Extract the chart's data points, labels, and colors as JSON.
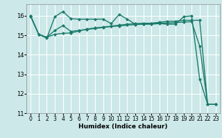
{
  "bg_color": "#cce8e8",
  "grid_color": "#ffffff",
  "line_color": "#1a7a6a",
  "xlabel": "Humidex (Indice chaleur)",
  "xlim": [
    -0.5,
    23.5
  ],
  "ylim": [
    11,
    16.6
  ],
  "yticks": [
    11,
    12,
    13,
    14,
    15,
    16
  ],
  "xticks": [
    0,
    1,
    2,
    3,
    4,
    5,
    6,
    7,
    8,
    9,
    10,
    11,
    12,
    13,
    14,
    15,
    16,
    17,
    18,
    19,
    20,
    21,
    22,
    23
  ],
  "series": [
    {
      "x": [
        0,
        1,
        2,
        3,
        4,
        5,
        6,
        7,
        8,
        9,
        10,
        11,
        12,
        13,
        14,
        15,
        16,
        17,
        18,
        19,
        20,
        21,
        22,
        23
      ],
      "y": [
        16.0,
        15.05,
        14.85,
        15.95,
        16.22,
        15.85,
        15.83,
        15.83,
        15.83,
        15.83,
        15.6,
        16.07,
        15.83,
        15.57,
        15.57,
        15.57,
        15.6,
        15.57,
        15.57,
        15.95,
        16.0,
        12.75,
        11.45,
        11.45
      ],
      "marker": "D",
      "markersize": 2.0,
      "linewidth": 1.0
    },
    {
      "x": [
        0,
        1,
        2,
        3,
        4,
        5,
        6,
        7,
        8,
        9,
        10,
        11,
        12,
        13,
        14,
        15,
        16,
        17,
        18,
        19,
        20,
        21,
        22,
        23
      ],
      "y": [
        15.95,
        15.05,
        14.9,
        15.25,
        15.5,
        15.2,
        15.25,
        15.3,
        15.35,
        15.4,
        15.45,
        15.48,
        15.52,
        15.55,
        15.57,
        15.6,
        15.63,
        15.63,
        15.65,
        15.68,
        15.7,
        14.45,
        11.45,
        11.45
      ],
      "marker": "D",
      "markersize": 2.0,
      "linewidth": 1.0
    },
    {
      "x": [
        0,
        1,
        2,
        3,
        4,
        5,
        6,
        7,
        8,
        9,
        10,
        11,
        12,
        13,
        14,
        15,
        16,
        17,
        18,
        19,
        20,
        21,
        22,
        23
      ],
      "y": [
        16.0,
        15.05,
        14.9,
        15.05,
        15.1,
        15.12,
        15.22,
        15.32,
        15.38,
        15.42,
        15.47,
        15.52,
        15.57,
        15.6,
        15.62,
        15.62,
        15.67,
        15.72,
        15.72,
        15.77,
        15.77,
        15.77,
        11.45,
        11.45
      ],
      "marker": "D",
      "markersize": 2.0,
      "linewidth": 1.0
    }
  ]
}
